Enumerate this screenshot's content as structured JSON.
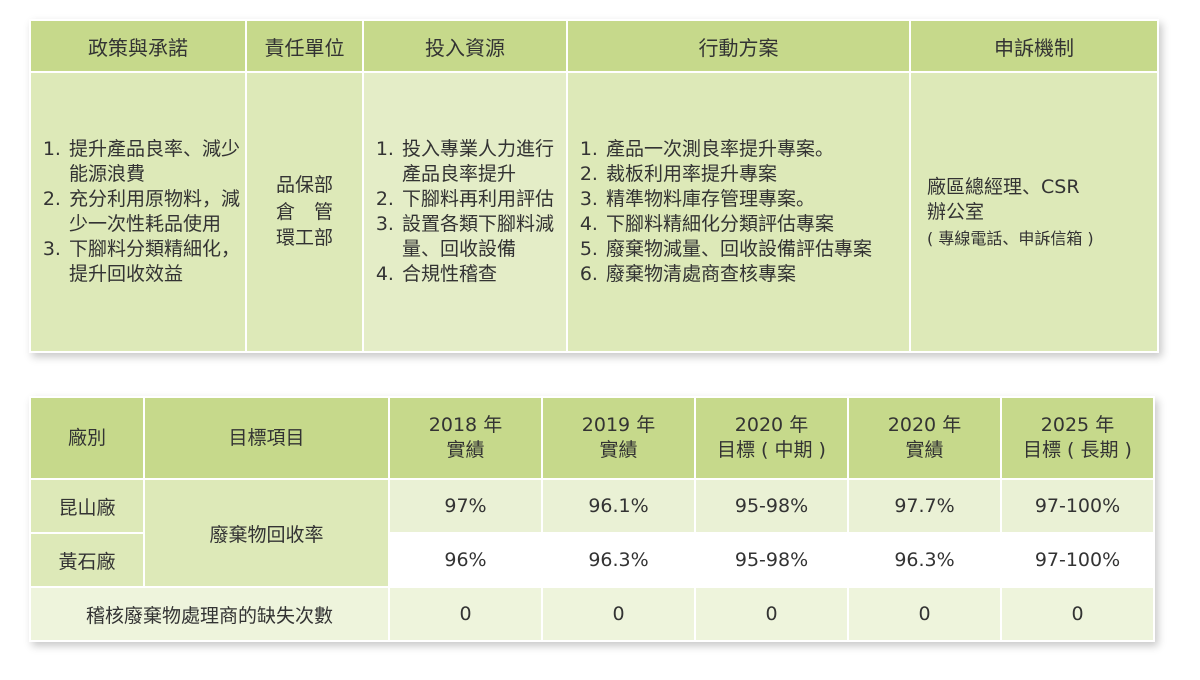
{
  "policy": {
    "headers": {
      "commitments": "政策與承諾",
      "units": "責任單位",
      "resources": "投入資源",
      "actions": "行動方案",
      "grievance": "申訴機制"
    },
    "commitments": [
      "提升產品良率、減少能源浪費",
      "充分利用原物料，減少一次性耗品使用",
      "下腳料分類精細化，提升回收效益"
    ],
    "units": [
      "品保部",
      "倉　管",
      "環工部"
    ],
    "resources": [
      "投入專業人力進行產品良率提升",
      "下腳料再利用評估",
      "設置各類下腳料減量、回收設備",
      "合規性稽查"
    ],
    "actions": [
      "產品一次測良率提升專案。",
      "裁板利用率提升專案",
      "精準物料庫存管理專案。",
      "下腳料精細化分類評估專案",
      "廢棄物減量、回收設備評估專案",
      "廢棄物清處商查核專案"
    ],
    "grievance": {
      "line1": "廠區總經理、CSR",
      "line2": "辦公室",
      "note": "( 專線電話、申訴信箱 )"
    }
  },
  "targets": {
    "headers": {
      "plant": "廠別",
      "item": "目標項目",
      "c2018a": "2018 年",
      "c2018b": "實績",
      "c2019a": "2019 年",
      "c2019b": "實績",
      "c2020ta": "2020 年",
      "c2020tb": "目標 ( 中期 )",
      "c2020aa": "2020 年",
      "c2020ab": "實績",
      "c2025a": "2025 年",
      "c2025b": "目標 ( 長期 )"
    },
    "item_recycling": "廢棄物回收率",
    "rows": [
      {
        "plant": "昆山廠",
        "v2018": "97%",
        "v2019": "96.1%",
        "v2020t": "95-98%",
        "v2020a": "97.7%",
        "v2025": "97-100%"
      },
      {
        "plant": "黃石廠",
        "v2018": "96%",
        "v2019": "96.3%",
        "v2020t": "95-98%",
        "v2020a": "96.3%",
        "v2025": "97-100%"
      }
    ],
    "audit": {
      "label": "稽核廢棄物處理商的缺失次數",
      "v2018": "0",
      "v2019": "0",
      "v2020t": "0",
      "v2020a": "0",
      "v2025": "0"
    }
  }
}
